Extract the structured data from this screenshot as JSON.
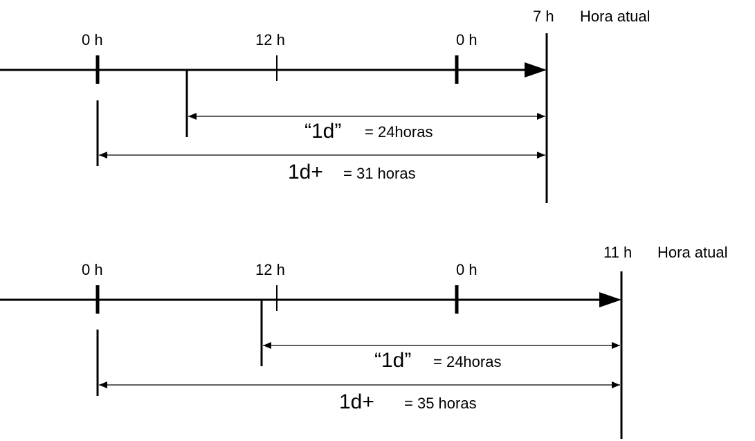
{
  "diagrams": [
    {
      "tick_labels": {
        "midnight_1": "0 h",
        "noon": "12 h",
        "midnight_2": "0 h"
      },
      "current_hour": "7 h",
      "current_label": "Hora atual",
      "span_1d": {
        "label": "“1d”",
        "value": "= 24horas"
      },
      "span_1d_plus": {
        "label": "1d+",
        "value": "= 31 horas"
      }
    },
    {
      "tick_labels": {
        "midnight_1": "0 h",
        "noon": "12 h",
        "midnight_2": "0 h"
      },
      "current_hour": "11 h",
      "current_label": "Hora atual",
      "span_1d": {
        "label": "“1d”",
        "value": "= 24horas"
      },
      "span_1d_plus": {
        "label": "1d+",
        "value": "= 35 horas"
      }
    }
  ],
  "colors": {
    "line": "#000000",
    "background": "#ffffff"
  }
}
